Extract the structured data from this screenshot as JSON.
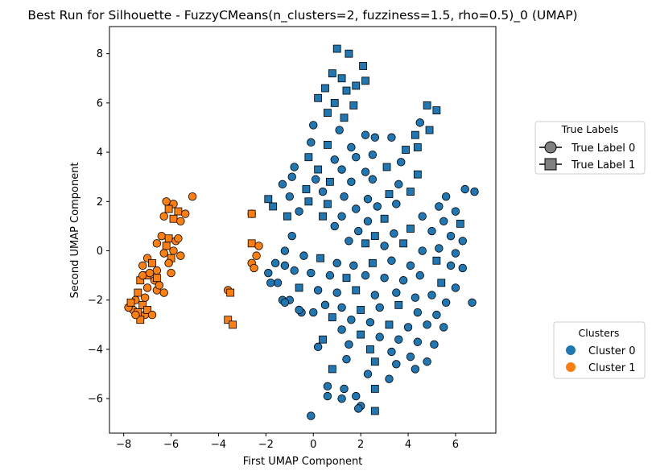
{
  "chart_data": {
    "type": "scatter",
    "title": "Best Run for Silhouette - FuzzyCMeans(n_clusters=2, fuzziness=1.5, rho=0.5)_0 (UMAP)",
    "xlabel": "First UMAP Component",
    "ylabel": "Second UMAP Component",
    "xlim": [
      -8.6,
      7.7
    ],
    "ylim": [
      -7.4,
      9.1
    ],
    "xticks": [
      -8,
      -6,
      -4,
      -2,
      0,
      2,
      4,
      6
    ],
    "yticks": [
      -6,
      -4,
      -2,
      0,
      2,
      4,
      6,
      8
    ],
    "grid": false,
    "colors": {
      "cluster0": "#1f77b4",
      "cluster1": "#ff7f0e",
      "edge": "#000000",
      "marker_legend": "#808080"
    },
    "legends": [
      {
        "title": "True Labels",
        "placement": "right-upper",
        "entries": [
          {
            "label": "True Label 0",
            "marker": "circle"
          },
          {
            "label": "True Label 1",
            "marker": "square"
          }
        ]
      },
      {
        "title": "Clusters",
        "placement": "right-lower",
        "entries": [
          {
            "label": "Cluster 0",
            "color": "#1f77b4"
          },
          {
            "label": "Cluster 1",
            "color": "#ff7f0e"
          }
        ]
      }
    ],
    "series": [
      {
        "name": "Cluster 0",
        "color": "#1f77b4",
        "points": [
          [
            1.5,
            8.0,
            1
          ],
          [
            1.0,
            8.2,
            1
          ],
          [
            2.1,
            7.5,
            1
          ],
          [
            0.8,
            7.2,
            1
          ],
          [
            1.2,
            7.0,
            1
          ],
          [
            0.5,
            6.6,
            1
          ],
          [
            1.4,
            6.5,
            1
          ],
          [
            1.8,
            6.7,
            1
          ],
          [
            2.2,
            6.9,
            1
          ],
          [
            0.2,
            6.2,
            1
          ],
          [
            0.9,
            6.0,
            1
          ],
          [
            1.7,
            5.9,
            1
          ],
          [
            0.6,
            5.6,
            1
          ],
          [
            1.3,
            5.4,
            1
          ],
          [
            4.8,
            5.9,
            1
          ],
          [
            5.2,
            5.7,
            1
          ],
          [
            4.5,
            5.2,
            0
          ],
          [
            4.3,
            4.7,
            1
          ],
          [
            4.9,
            4.9,
            1
          ],
          [
            3.9,
            4.1,
            1
          ],
          [
            4.4,
            4.2,
            1
          ],
          [
            1.1,
            4.9,
            0
          ],
          [
            0.0,
            5.1,
            0
          ],
          [
            2.2,
            4.7,
            0
          ],
          [
            -0.1,
            4.4,
            0
          ],
          [
            0.6,
            4.3,
            1
          ],
          [
            1.6,
            4.2,
            0
          ],
          [
            2.6,
            4.6,
            0
          ],
          [
            3.3,
            4.6,
            0
          ],
          [
            -0.2,
            3.8,
            1
          ],
          [
            0.9,
            3.7,
            0
          ],
          [
            1.8,
            3.8,
            0
          ],
          [
            2.5,
            3.9,
            0
          ],
          [
            3.7,
            3.6,
            0
          ],
          [
            -0.8,
            3.4,
            0
          ],
          [
            0.2,
            3.3,
            1
          ],
          [
            1.2,
            3.3,
            0
          ],
          [
            2.2,
            3.2,
            0
          ],
          [
            3.1,
            3.4,
            1
          ],
          [
            4.4,
            3.1,
            1
          ],
          [
            -0.9,
            3.0,
            0
          ],
          [
            0.1,
            2.9,
            0
          ],
          [
            0.7,
            2.8,
            1
          ],
          [
            1.6,
            2.8,
            0
          ],
          [
            2.5,
            2.9,
            0
          ],
          [
            3.6,
            2.7,
            0
          ],
          [
            -1.3,
            2.7,
            0
          ],
          [
            -0.3,
            2.5,
            1
          ],
          [
            0.4,
            2.4,
            0
          ],
          [
            1.3,
            2.2,
            0
          ],
          [
            2.3,
            2.1,
            0
          ],
          [
            3.2,
            2.3,
            1
          ],
          [
            4.1,
            2.4,
            1
          ],
          [
            5.6,
            2.2,
            0
          ],
          [
            6.4,
            2.5,
            0
          ],
          [
            6.8,
            2.4,
            0
          ],
          [
            -1.0,
            2.2,
            0
          ],
          [
            -0.2,
            2.0,
            1
          ],
          [
            0.6,
            1.9,
            1
          ],
          [
            1.8,
            1.7,
            0
          ],
          [
            2.7,
            1.8,
            0
          ],
          [
            3.5,
            1.9,
            0
          ],
          [
            5.3,
            1.8,
            0
          ],
          [
            6.0,
            1.6,
            0
          ],
          [
            -0.6,
            1.6,
            0
          ],
          [
            0.4,
            1.4,
            1
          ],
          [
            1.2,
            1.4,
            0
          ],
          [
            2.3,
            1.2,
            0
          ],
          [
            3.0,
            1.3,
            1
          ],
          [
            4.6,
            1.4,
            0
          ],
          [
            5.5,
            1.2,
            0
          ],
          [
            6.2,
            1.1,
            1
          ],
          [
            -1.7,
            1.8,
            1
          ],
          [
            -1.9,
            2.1,
            1
          ],
          [
            -1.1,
            1.4,
            1
          ],
          [
            0.9,
            1.0,
            0
          ],
          [
            1.9,
            0.8,
            0
          ],
          [
            2.6,
            0.6,
            1
          ],
          [
            3.4,
            0.7,
            0
          ],
          [
            4.1,
            0.9,
            1
          ],
          [
            5.0,
            0.8,
            0
          ],
          [
            5.8,
            0.6,
            0
          ],
          [
            6.3,
            0.4,
            0
          ],
          [
            -0.9,
            0.6,
            0
          ],
          [
            1.5,
            0.4,
            0
          ],
          [
            2.2,
            0.3,
            1
          ],
          [
            3.0,
            0.2,
            0
          ],
          [
            3.8,
            0.3,
            1
          ],
          [
            4.6,
            0.0,
            0
          ],
          [
            5.3,
            0.1,
            0
          ],
          [
            6.0,
            -0.1,
            0
          ],
          [
            -1.2,
            0.0,
            0
          ],
          [
            -0.4,
            -0.2,
            0
          ],
          [
            0.3,
            -0.3,
            1
          ],
          [
            1.0,
            -0.5,
            0
          ],
          [
            1.7,
            -0.6,
            0
          ],
          [
            2.5,
            -0.5,
            1
          ],
          [
            3.3,
            -0.4,
            0
          ],
          [
            4.1,
            -0.6,
            0
          ],
          [
            5.2,
            -0.4,
            1
          ],
          [
            5.8,
            -0.6,
            0
          ],
          [
            6.3,
            -0.7,
            0
          ],
          [
            -1.6,
            -0.5,
            0
          ],
          [
            -0.8,
            -0.8,
            0
          ],
          [
            -0.1,
            -0.9,
            0
          ],
          [
            0.7,
            -1.0,
            0
          ],
          [
            1.4,
            -1.1,
            1
          ],
          [
            2.2,
            -1.0,
            0
          ],
          [
            3.0,
            -1.1,
            0
          ],
          [
            3.8,
            -1.2,
            0
          ],
          [
            4.5,
            -1.0,
            0
          ],
          [
            5.4,
            -1.3,
            1
          ],
          [
            6.0,
            -1.5,
            0
          ],
          [
            -1.5,
            -1.3,
            0
          ],
          [
            -0.6,
            -1.5,
            1
          ],
          [
            0.2,
            -1.6,
            0
          ],
          [
            1.0,
            -1.7,
            0
          ],
          [
            1.8,
            -1.6,
            1
          ],
          [
            2.6,
            -1.8,
            0
          ],
          [
            3.5,
            -1.7,
            0
          ],
          [
            4.3,
            -1.9,
            0
          ],
          [
            5.0,
            -1.8,
            0
          ],
          [
            5.6,
            -2.1,
            0
          ],
          [
            6.7,
            -2.1,
            0
          ],
          [
            -1.0,
            -2.0,
            0
          ],
          [
            0.5,
            -2.2,
            0
          ],
          [
            1.2,
            -2.3,
            0
          ],
          [
            2.0,
            -2.4,
            1
          ],
          [
            2.8,
            -2.3,
            0
          ],
          [
            3.6,
            -2.2,
            1
          ],
          [
            4.4,
            -2.5,
            0
          ],
          [
            5.2,
            -2.6,
            0
          ],
          [
            -1.3,
            -2.0,
            0
          ],
          [
            0.0,
            -2.5,
            0
          ],
          [
            0.8,
            -2.7,
            1
          ],
          [
            1.6,
            -2.8,
            0
          ],
          [
            2.4,
            -2.9,
            0
          ],
          [
            3.2,
            -3.0,
            1
          ],
          [
            4.0,
            -3.1,
            0
          ],
          [
            4.8,
            -3.0,
            0
          ],
          [
            5.5,
            -3.1,
            0
          ],
          [
            -0.5,
            -2.5,
            0
          ],
          [
            1.2,
            -3.2,
            0
          ],
          [
            2.0,
            -3.4,
            1
          ],
          [
            2.8,
            -3.5,
            0
          ],
          [
            3.6,
            -3.6,
            0
          ],
          [
            4.4,
            -3.7,
            0
          ],
          [
            5.1,
            -3.8,
            0
          ],
          [
            0.4,
            -3.6,
            1
          ],
          [
            1.5,
            -3.8,
            0
          ],
          [
            2.4,
            -4.0,
            1
          ],
          [
            3.3,
            -4.1,
            0
          ],
          [
            4.1,
            -4.3,
            0
          ],
          [
            4.8,
            -4.5,
            0
          ],
          [
            0.2,
            -3.9,
            0
          ],
          [
            1.4,
            -4.4,
            0
          ],
          [
            2.6,
            -4.5,
            1
          ],
          [
            3.5,
            -4.6,
            0
          ],
          [
            4.3,
            -4.8,
            0
          ],
          [
            0.8,
            -4.8,
            1
          ],
          [
            2.3,
            -5.0,
            0
          ],
          [
            3.2,
            -5.2,
            0
          ],
          [
            1.3,
            -5.6,
            0
          ],
          [
            0.6,
            -5.5,
            0
          ],
          [
            1.8,
            -5.9,
            0
          ],
          [
            2.6,
            -5.6,
            1
          ],
          [
            0.6,
            -5.9,
            0
          ],
          [
            1.2,
            -6.0,
            0
          ],
          [
            2.0,
            -6.3,
            0
          ],
          [
            2.6,
            -6.5,
            1
          ],
          [
            -0.1,
            -6.7,
            0
          ],
          [
            1.9,
            -6.4,
            0
          ],
          [
            -2.6,
            1.5,
            0
          ],
          [
            -1.2,
            -0.6,
            0
          ],
          [
            -1.9,
            -0.9,
            0
          ],
          [
            -1.8,
            -1.3,
            0
          ],
          [
            -1.2,
            -2.1,
            0
          ],
          [
            -0.6,
            -2.4,
            0
          ]
        ]
      },
      {
        "name": "Cluster 1",
        "color": "#ff7f0e",
        "points": [
          [
            -6.2,
            2.0,
            0
          ],
          [
            -5.9,
            1.9,
            0
          ],
          [
            -5.1,
            2.2,
            0
          ],
          [
            -6.1,
            1.7,
            1
          ],
          [
            -5.7,
            1.6,
            1
          ],
          [
            -5.4,
            1.5,
            0
          ],
          [
            -6.3,
            1.4,
            0
          ],
          [
            -5.9,
            1.3,
            1
          ],
          [
            -5.6,
            1.2,
            0
          ],
          [
            -6.4,
            0.6,
            0
          ],
          [
            -6.1,
            0.5,
            1
          ],
          [
            -5.8,
            0.4,
            0
          ],
          [
            -6.6,
            0.3,
            0
          ],
          [
            -6.2,
            0.2,
            1
          ],
          [
            -5.9,
            0.0,
            0
          ],
          [
            -5.6,
            -0.2,
            0
          ],
          [
            -6.3,
            -0.1,
            0
          ],
          [
            -6.0,
            -0.3,
            1
          ],
          [
            -5.7,
            0.5,
            0
          ],
          [
            -6.0,
            -0.9,
            0
          ],
          [
            -6.1,
            -0.5,
            0
          ],
          [
            -7.0,
            -0.3,
            0
          ],
          [
            -6.8,
            -0.5,
            1
          ],
          [
            -7.2,
            -0.6,
            0
          ],
          [
            -6.6,
            -0.8,
            0
          ],
          [
            -7.0,
            -1.0,
            1
          ],
          [
            -6.7,
            -1.2,
            0
          ],
          [
            -7.3,
            -1.2,
            1
          ],
          [
            -7.0,
            -1.5,
            0
          ],
          [
            -6.6,
            -1.6,
            0
          ],
          [
            -7.4,
            -1.7,
            1
          ],
          [
            -7.1,
            -1.9,
            0
          ],
          [
            -7.5,
            -2.0,
            0
          ],
          [
            -7.2,
            -2.2,
            1
          ],
          [
            -7.6,
            -2.4,
            0
          ],
          [
            -7.4,
            -2.5,
            1
          ],
          [
            -7.8,
            -2.3,
            0
          ],
          [
            -7.1,
            -2.6,
            0
          ],
          [
            -7.3,
            -2.8,
            1
          ],
          [
            -7.0,
            -2.4,
            1
          ],
          [
            -6.8,
            -2.6,
            0
          ],
          [
            -6.3,
            -1.7,
            0
          ],
          [
            -6.5,
            -1.4,
            0
          ],
          [
            -7.7,
            -2.1,
            1
          ],
          [
            -7.5,
            -2.6,
            0
          ],
          [
            -7.2,
            -1.0,
            0
          ],
          [
            -6.9,
            -0.9,
            0
          ],
          [
            -6.6,
            -1.1,
            1
          ],
          [
            -2.6,
            1.5,
            1
          ],
          [
            -3.6,
            -1.6,
            0
          ],
          [
            -3.5,
            -1.7,
            1
          ],
          [
            -3.6,
            -2.8,
            1
          ],
          [
            -3.4,
            -3.0,
            1
          ],
          [
            -2.6,
            -0.5,
            0
          ],
          [
            -2.5,
            -0.7,
            0
          ],
          [
            -2.6,
            0.3,
            1
          ],
          [
            -2.3,
            0.2,
            0
          ],
          [
            -2.4,
            -0.2,
            0
          ]
        ]
      }
    ]
  }
}
